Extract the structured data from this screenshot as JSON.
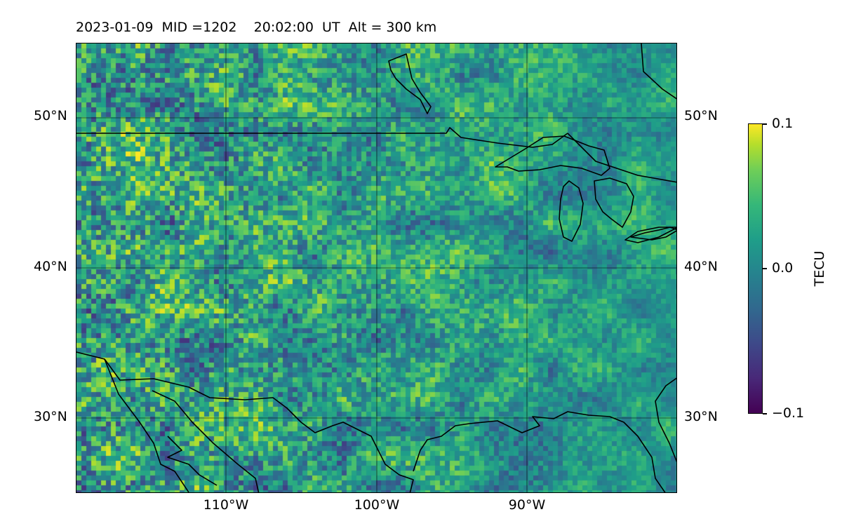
{
  "title": {
    "date": "2023-01-09",
    "mid": "MID =1202",
    "time": "20:02:00  UT",
    "alt": "Alt = 300 km"
  },
  "map": {
    "extent_lon": [
      -120,
      -80
    ],
    "extent_lat": [
      25,
      55
    ],
    "latitude_ticks": [
      "50°N",
      "40°N",
      "30°N"
    ],
    "longitude_ticks": [
      "110°W",
      "100°W",
      "90°W"
    ],
    "gridline_color": "#000000",
    "coastline_color": "#000000",
    "colormap": "viridis"
  },
  "colorbar": {
    "label": "TECU",
    "range": [
      -0.1,
      0.1
    ],
    "tick_labels": [
      "0.1",
      "0.0",
      "−0.1"
    ]
  }
}
